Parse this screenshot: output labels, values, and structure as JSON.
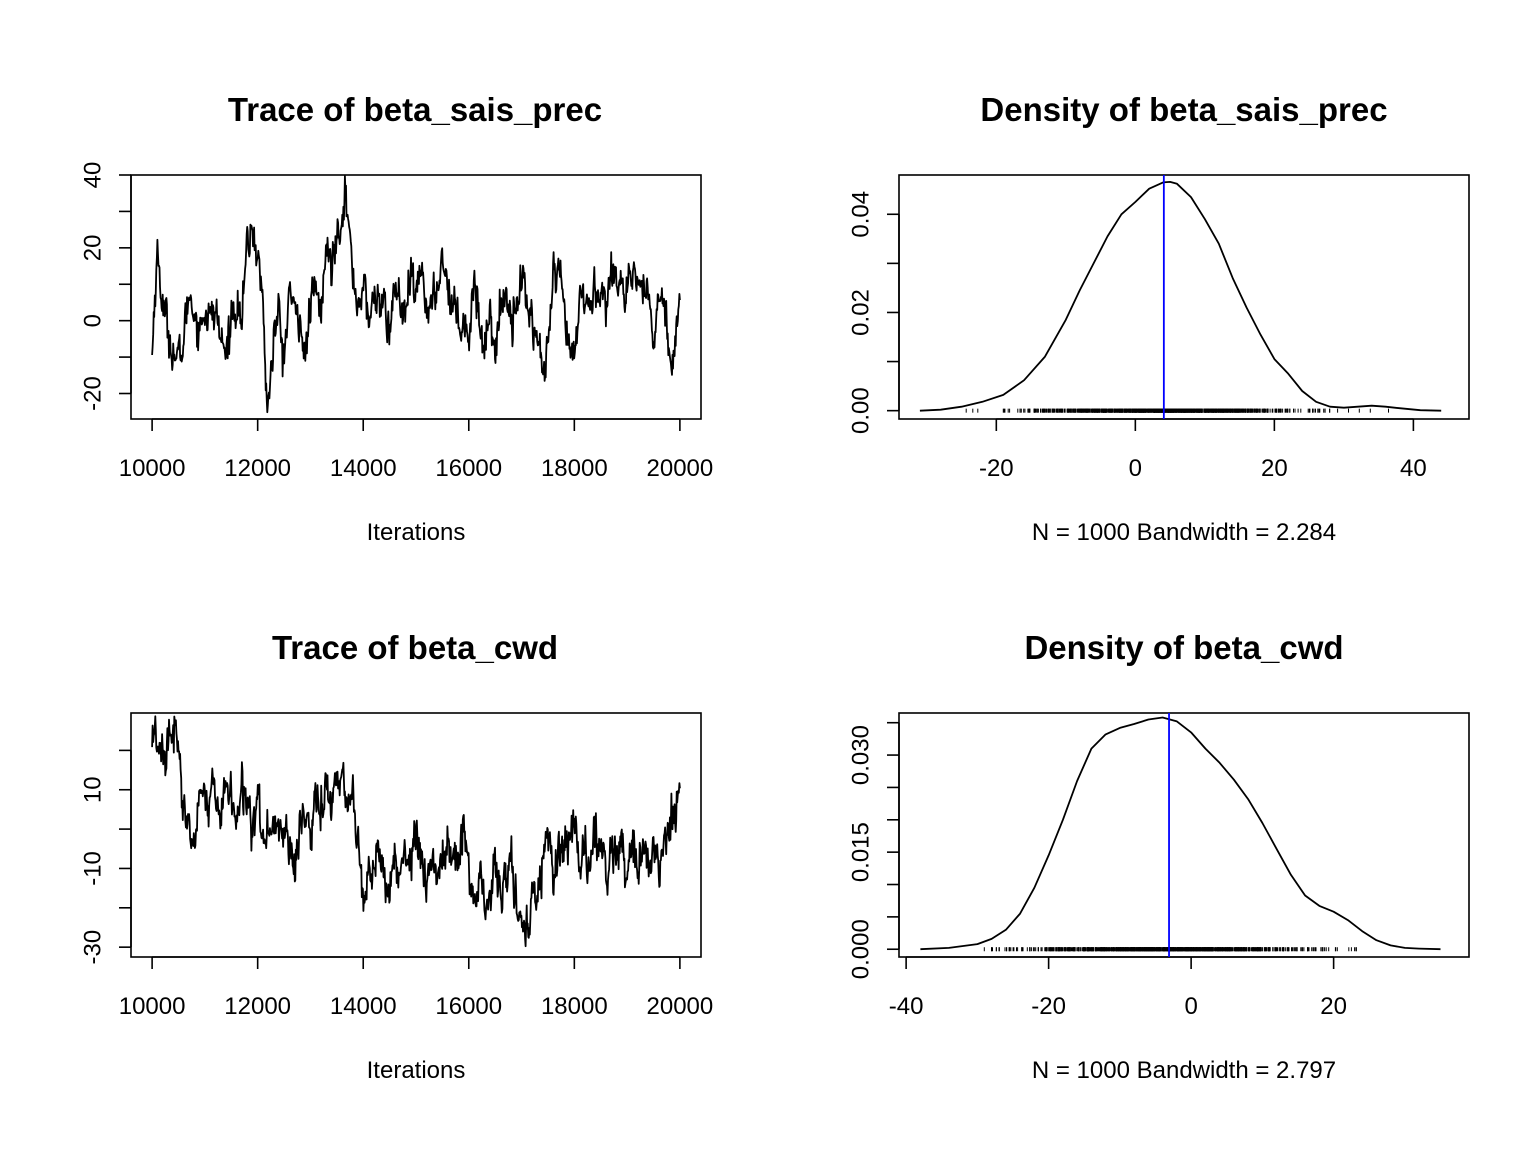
{
  "chart_data": [
    {
      "type": "line",
      "kind": "trace",
      "title": "Trace of beta_sais_prec",
      "xlabel": "Iterations",
      "ylabel": "",
      "xlim": [
        9600,
        20400
      ],
      "ylim": [
        -27,
        40
      ],
      "xticks": [
        10000,
        12000,
        14000,
        16000,
        18000,
        20000
      ],
      "yticks": [
        -20,
        0,
        20,
        40
      ],
      "y_minor_ticks": [
        -10,
        10,
        30
      ],
      "x_keypoints": [
        10000,
        10050,
        10100,
        10200,
        10300,
        10400,
        10500,
        10600,
        10700,
        10800,
        10900,
        11000,
        11100,
        11200,
        11300,
        11400,
        11500,
        11600,
        11700,
        11800,
        11900,
        12000,
        12100,
        12150,
        12200,
        12300,
        12400,
        12500,
        12600,
        12700,
        12800,
        12900,
        13000,
        13100,
        13200,
        13300,
        13400,
        13500,
        13600,
        13650,
        13700,
        13800,
        13900,
        14000,
        14100,
        14200,
        14300,
        14400,
        14500,
        14600,
        14700,
        14800,
        14900,
        15000,
        15100,
        15200,
        15300,
        15400,
        15500,
        15600,
        15700,
        15800,
        15900,
        16000,
        16100,
        16200,
        16300,
        16400,
        16500,
        16600,
        16700,
        16800,
        16900,
        17000,
        17100,
        17200,
        17300,
        17400,
        17450,
        17500,
        17600,
        17700,
        17800,
        17900,
        18000,
        18100,
        18200,
        18300,
        18400,
        18500,
        18600,
        18700,
        18800,
        18900,
        19000,
        19100,
        19200,
        19300,
        19400,
        19500,
        19600,
        19700,
        19800,
        19900,
        20000
      ],
      "y_keypoints": [
        -10,
        8,
        18,
        5,
        -3,
        -8,
        -12,
        -5,
        8,
        3,
        -3,
        4,
        0,
        3,
        -5,
        -10,
        2,
        5,
        0,
        20,
        25,
        18,
        5,
        -15,
        -24,
        -5,
        2,
        -12,
        10,
        0,
        3,
        -12,
        5,
        8,
        2,
        20,
        15,
        25,
        30,
        37,
        30,
        12,
        5,
        10,
        0,
        5,
        8,
        2,
        -3,
        10,
        5,
        0,
        12,
        5,
        15,
        5,
        2,
        10,
        18,
        10,
        5,
        0,
        2,
        -5,
        12,
        0,
        -8,
        5,
        -10,
        3,
        8,
        2,
        5,
        12,
        5,
        0,
        -5,
        -12,
        -18,
        -5,
        10,
        12,
        3,
        -8,
        -12,
        5,
        8,
        2,
        10,
        8,
        5,
        12,
        15,
        10,
        5,
        10,
        12,
        8,
        5,
        -5,
        5,
        8,
        -10,
        -5,
        5
      ],
      "noise_amplitude": 2.6
    },
    {
      "type": "line",
      "kind": "density",
      "title": "Density of beta_sais_prec",
      "xlabel": "N = 1000   Bandwidth = 2.284",
      "ylabel": "",
      "xlim": [
        -34,
        48
      ],
      "ylim": [
        -0.0017,
        0.048
      ],
      "xticks": [
        -20,
        0,
        20,
        40
      ],
      "yticks": [
        0.0,
        0.02,
        0.04
      ],
      "ytick_labels": [
        "0.00",
        "0.02",
        "0.04"
      ],
      "y_minor_ticks": [
        0.01,
        0.03
      ],
      "x": [
        -31,
        -28,
        -25,
        -22,
        -19,
        -16,
        -13,
        -10,
        -8,
        -6,
        -4,
        -2,
        0,
        2,
        4,
        5,
        6,
        8,
        10,
        12,
        14,
        16,
        18,
        20,
        22,
        24,
        26,
        28,
        30,
        32,
        34,
        36,
        38,
        41,
        44
      ],
      "y": [
        0.0,
        0.0002,
        0.0008,
        0.0018,
        0.0032,
        0.0062,
        0.011,
        0.0185,
        0.0245,
        0.03,
        0.0355,
        0.04,
        0.0425,
        0.0452,
        0.0465,
        0.0466,
        0.0462,
        0.0435,
        0.039,
        0.034,
        0.027,
        0.021,
        0.0155,
        0.0105,
        0.0075,
        0.004,
        0.0018,
        0.0008,
        0.0006,
        0.0008,
        0.001,
        0.0008,
        0.0005,
        0.0001,
        0.0
      ],
      "vline": 4.1,
      "vline_color": "#0000ff",
      "rug_range": [
        -25,
        38
      ],
      "rug_center": 4.5,
      "rug_spread": 9.5,
      "rug_count": 1000
    },
    {
      "type": "line",
      "kind": "trace",
      "title": "Trace of beta_cwd",
      "xlabel": "Iterations",
      "ylabel": "",
      "xlim": [
        9600,
        20400
      ],
      "ylim": [
        -32.5,
        29.5
      ],
      "xticks": [
        10000,
        12000,
        14000,
        16000,
        18000,
        20000
      ],
      "yticks": [
        -30,
        -10,
        10
      ],
      "y_minor_ticks": [
        -20,
        0,
        20
      ],
      "x_keypoints": [
        10000,
        10050,
        10100,
        10200,
        10300,
        10400,
        10500,
        10600,
        10700,
        10800,
        10900,
        11000,
        11100,
        11200,
        11300,
        11400,
        11500,
        11600,
        11700,
        11800,
        11900,
        12000,
        12100,
        12200,
        12300,
        12400,
        12500,
        12600,
        12700,
        12800,
        12900,
        13000,
        13100,
        13200,
        13300,
        13400,
        13500,
        13600,
        13700,
        13800,
        13900,
        14000,
        14100,
        14200,
        14300,
        14400,
        14500,
        14600,
        14700,
        14800,
        14900,
        15000,
        15100,
        15200,
        15300,
        15400,
        15500,
        15600,
        15700,
        15800,
        15900,
        16000,
        16100,
        16200,
        16300,
        16400,
        16500,
        16600,
        16700,
        16800,
        16900,
        17000,
        17050,
        17100,
        17200,
        17300,
        17400,
        17500,
        17600,
        17700,
        17800,
        17900,
        18000,
        18100,
        18200,
        18300,
        18400,
        18500,
        18600,
        18700,
        18800,
        18900,
        19000,
        19100,
        19200,
        19300,
        19400,
        19500,
        19600,
        19700,
        19800,
        19900,
        20000
      ],
      "y_keypoints": [
        20,
        27,
        22,
        16,
        18,
        25,
        20,
        5,
        0,
        -5,
        8,
        12,
        6,
        10,
        3,
        12,
        8,
        2,
        10,
        5,
        0,
        5,
        -2,
        3,
        -4,
        0,
        2,
        -5,
        -12,
        0,
        4,
        -3,
        8,
        2,
        10,
        5,
        12,
        15,
        8,
        2,
        -5,
        -20,
        -8,
        -10,
        -6,
        -12,
        -15,
        -8,
        -12,
        -5,
        -10,
        0,
        -8,
        -12,
        -5,
        -10,
        -6,
        -3,
        -8,
        -5,
        0,
        -10,
        -18,
        -12,
        -15,
        -18,
        -8,
        -20,
        -12,
        -8,
        -18,
        -22,
        -29,
        -25,
        -18,
        -15,
        -8,
        0,
        -12,
        -5,
        -10,
        -3,
        2,
        -8,
        -5,
        -10,
        -3,
        0,
        -12,
        -8,
        -5,
        -3,
        -15,
        -5,
        -10,
        -5,
        -8,
        -2,
        -12,
        -3,
        0,
        5,
        8
      ],
      "noise_amplitude": 2.6
    },
    {
      "type": "line",
      "kind": "density",
      "title": "Density of beta_cwd",
      "xlabel": "N = 1000   Bandwidth = 2.797",
      "ylabel": "",
      "xlim": [
        -41,
        39
      ],
      "ylim": [
        -0.0012,
        0.0365
      ],
      "xticks": [
        -40,
        -20,
        0,
        20
      ],
      "yticks": [
        0.0,
        0.015,
        0.03
      ],
      "ytick_labels": [
        "0.000",
        "0.015",
        "0.030"
      ],
      "y_minor_ticks": [
        0.005,
        0.01,
        0.02,
        0.025,
        0.035
      ],
      "x": [
        -38,
        -34,
        -30,
        -28,
        -26,
        -24,
        -22,
        -20,
        -18,
        -16,
        -14,
        -12,
        -10,
        -8,
        -6,
        -4,
        -2,
        0,
        2,
        4,
        6,
        8,
        10,
        12,
        14,
        16,
        18,
        20,
        22,
        24,
        26,
        28,
        30,
        32,
        35
      ],
      "y": [
        0.0,
        0.0002,
        0.0008,
        0.0016,
        0.003,
        0.0055,
        0.0095,
        0.0145,
        0.02,
        0.026,
        0.031,
        0.0332,
        0.0342,
        0.0348,
        0.0355,
        0.0358,
        0.0352,
        0.0335,
        0.031,
        0.0288,
        0.0262,
        0.0232,
        0.0195,
        0.0155,
        0.0115,
        0.0083,
        0.0067,
        0.0058,
        0.0045,
        0.0028,
        0.0014,
        0.0006,
        0.0002,
        0.0001,
        0.0
      ],
      "vline": -3.1,
      "vline_color": "#0000ff",
      "rug_range": [
        -30,
        27
      ],
      "rug_center": -3.5,
      "rug_spread": 10.5,
      "rug_count": 1000
    }
  ]
}
